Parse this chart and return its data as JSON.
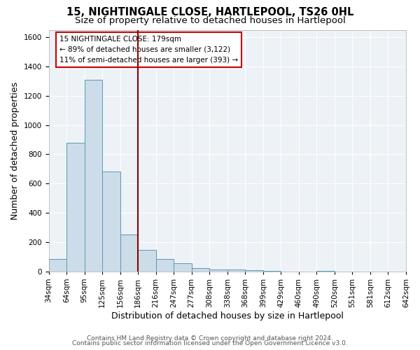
{
  "title": "15, NIGHTINGALE CLOSE, HARTLEPOOL, TS26 0HL",
  "subtitle": "Size of property relative to detached houses in Hartlepool",
  "xlabel": "Distribution of detached houses by size in Hartlepool",
  "ylabel": "Number of detached properties",
  "bar_values": [
    85,
    880,
    1310,
    680,
    250,
    145,
    85,
    55,
    25,
    15,
    15,
    10,
    5,
    0,
    0,
    5,
    0,
    0,
    0,
    0
  ],
  "bin_labels": [
    "34sqm",
    "64sqm",
    "95sqm",
    "125sqm",
    "156sqm",
    "186sqm",
    "216sqm",
    "247sqm",
    "277sqm",
    "308sqm",
    "338sqm",
    "368sqm",
    "399sqm",
    "429sqm",
    "460sqm",
    "490sqm",
    "520sqm",
    "551sqm",
    "581sqm",
    "612sqm",
    "642sqm"
  ],
  "n_bins": 20,
  "bar_color": "#ccdce8",
  "bar_edge_color": "#5b9ab5",
  "vline_x_index": 5,
  "vline_color": "#8b0000",
  "ylim_max": 1650,
  "yticks": [
    0,
    200,
    400,
    600,
    800,
    1000,
    1200,
    1400,
    1600
  ],
  "annotation_title": "15 NIGHTINGALE CLOSE: 179sqm",
  "annotation_line1": "← 89% of detached houses are smaller (3,122)",
  "annotation_line2": "11% of semi-detached houses are larger (393) →",
  "footer1": "Contains HM Land Registry data © Crown copyright and database right 2024.",
  "footer2": "Contains public sector information licensed under the Open Government Licence v3.0.",
  "bg_color": "#edf2f7",
  "title_fontsize": 10.5,
  "subtitle_fontsize": 9.5,
  "axis_label_fontsize": 9,
  "tick_fontsize": 7.5,
  "footer_fontsize": 6.5
}
